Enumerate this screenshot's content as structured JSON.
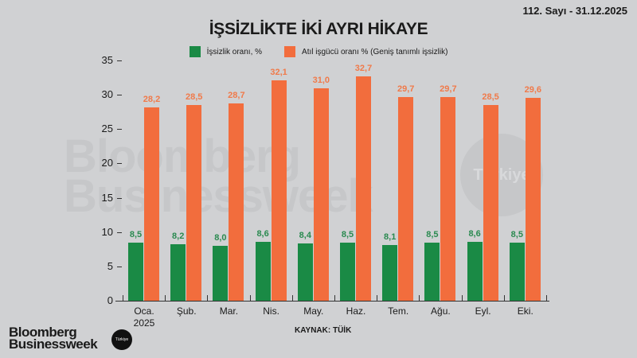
{
  "header": {
    "issue": "112. Sayı - 31.12.2025"
  },
  "chart_data": {
    "type": "bar",
    "title": "İŞSİZLİKTE İKİ AYRI HİKAYE",
    "categories": [
      "Oca. 2025",
      "Şub.",
      "Mar.",
      "Nis.",
      "May.",
      "Haz.",
      "Tem.",
      "Ağu.",
      "Eyl.",
      "Eki."
    ],
    "series": [
      {
        "name": "İşsizlik oranı, %",
        "color": "#1a8a45",
        "values": [
          8.5,
          8.2,
          8.0,
          8.6,
          8.4,
          8.5,
          8.1,
          8.5,
          8.6,
          8.5
        ],
        "labels": [
          "8,5",
          "8,2",
          "8,0",
          "8,6",
          "8,4",
          "8,5",
          "8,1",
          "8,5",
          "8,6",
          "8,5"
        ]
      },
      {
        "name": "Atıl işgücü oranı % (Geniş tanımlı işsizlik)",
        "color": "#f26d3d",
        "values": [
          28.2,
          28.5,
          28.7,
          32.1,
          31.0,
          32.7,
          29.7,
          29.7,
          28.5,
          29.6
        ],
        "labels": [
          "28,2",
          "28,5",
          "28,7",
          "32,1",
          "31,0",
          "32,7",
          "29,7",
          "29,7",
          "28,5",
          "29,6"
        ]
      }
    ],
    "xlabel": "",
    "ylabel": "",
    "ylim": [
      0,
      35
    ],
    "yticks": [
      0,
      5,
      10,
      15,
      20,
      25,
      30,
      35
    ],
    "grid": false,
    "legend_position": "top",
    "source": "KAYNAK: TÜİK"
  },
  "xlabels": [
    {
      "line1": "Oca.",
      "line2": "2025"
    },
    {
      "line1": "Şub.",
      "line2": ""
    },
    {
      "line1": "Mar.",
      "line2": ""
    },
    {
      "line1": "Nis.",
      "line2": ""
    },
    {
      "line1": "May.",
      "line2": ""
    },
    {
      "line1": "Haz.",
      "line2": ""
    },
    {
      "line1": "Tem.",
      "line2": ""
    },
    {
      "line1": "Ağu.",
      "line2": ""
    },
    {
      "line1": "Eyl.",
      "line2": ""
    },
    {
      "line1": "Eki.",
      "line2": ""
    }
  ],
  "watermark": {
    "line1": "Bloomberg",
    "line2": "Businessweek",
    "badge": "Türkiye"
  },
  "footer": {
    "logo_line1": "Bloomberg",
    "logo_line2": "Businessweek",
    "logo_badge": "Türkiye"
  }
}
